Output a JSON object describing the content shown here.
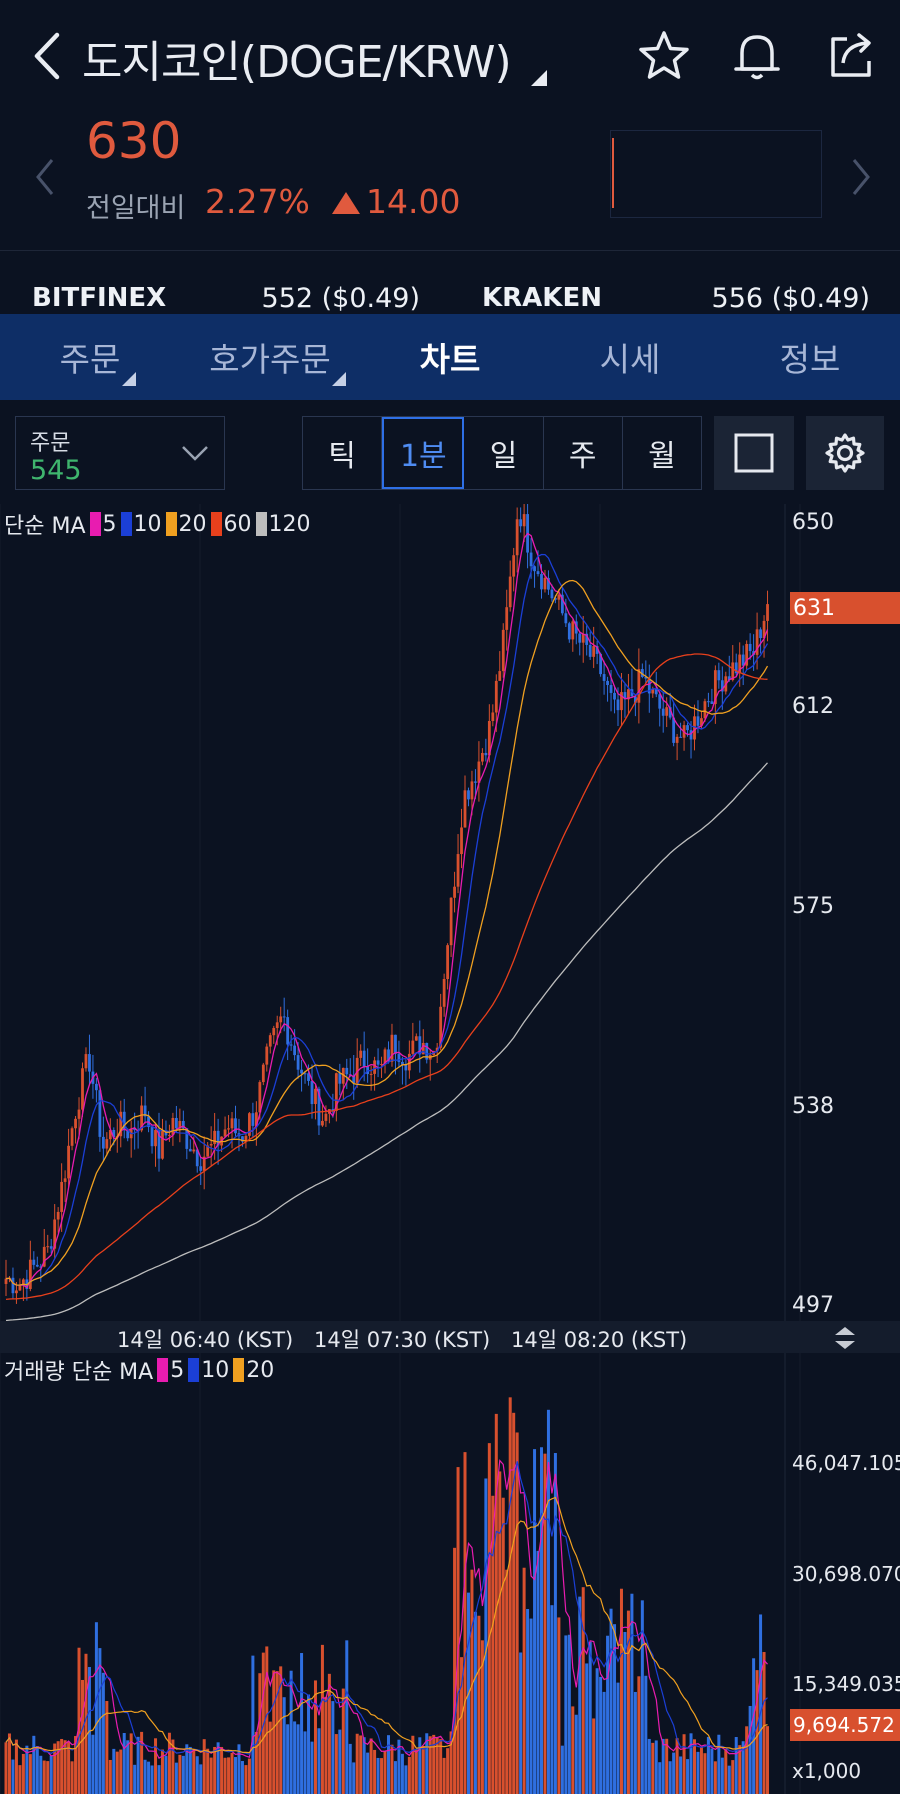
{
  "header": {
    "title": "도지코인(DOGE/KRW)",
    "price": "630",
    "change_label": "전일대비",
    "change_pct": "2.27%",
    "change_abs": "14.00",
    "colors": {
      "up": "#e05a3e",
      "background": "#0b1221"
    },
    "icons": [
      "back-icon",
      "star-icon",
      "bell-icon",
      "share-icon"
    ]
  },
  "exchanges": [
    {
      "name": "BITFINEX",
      "value": "552 ($0.49)"
    },
    {
      "name": "KRAKEN",
      "value": "556 ($0.49)"
    }
  ],
  "tabs": [
    {
      "label": "주문",
      "dropdown": true
    },
    {
      "label": "호가주문",
      "dropdown": true
    },
    {
      "label": "차트",
      "active": true
    },
    {
      "label": "시세"
    },
    {
      "label": "정보"
    }
  ],
  "toolbar": {
    "order_label": "주문",
    "order_value": "545",
    "periods": [
      "틱",
      "1분",
      "일",
      "주",
      "월"
    ],
    "active_period": "1분"
  },
  "price_chart": {
    "legend_title": "단순 MA",
    "ma": [
      {
        "label": "5",
        "color": "#e81cb0"
      },
      {
        "label": "10",
        "color": "#1b3fd6"
      },
      {
        "label": "20",
        "color": "#f0a020"
      },
      {
        "label": "60",
        "color": "#e8401c"
      },
      {
        "label": "120",
        "color": "#bdbdbd"
      }
    ],
    "y_ticks": [
      "650",
      "612",
      "575",
      "538",
      "497"
    ],
    "current_tag": "631",
    "time_labels": [
      "14일 06:40 (KST)",
      "14일 07:30 (KST)",
      "14일 08:20 (KST)"
    ]
  },
  "volume_chart": {
    "legend_title": "거래량 단순 MA",
    "ma": [
      {
        "label": "5",
        "color": "#e81cb0"
      },
      {
        "label": "10",
        "color": "#1b3fd6"
      },
      {
        "label": "20",
        "color": "#f0a020"
      }
    ],
    "y_ticks": [
      "46,047.105",
      "30,698.070",
      "15,349.035"
    ],
    "current_tag": "9,694.572",
    "unit": "x1,000"
  },
  "chart_data": [
    {
      "type": "candlestick",
      "title": "도지코인(DOGE/KRW) 1분",
      "ylim": [
        497,
        650
      ],
      "y_ticks": [
        650,
        612,
        575,
        538,
        497
      ],
      "x_ticks": [
        "14일 06:40 (KST)",
        "14일 07:30 (KST)",
        "14일 08:20 (KST)"
      ],
      "close_path": [
        503,
        502,
        505,
        508,
        520,
        535,
        545,
        528,
        532,
        531,
        535,
        527,
        533,
        530,
        526,
        528,
        532,
        530,
        535,
        546,
        553,
        545,
        538,
        533,
        540,
        542,
        545,
        542,
        548,
        545,
        548,
        546,
        570,
        594,
        600,
        608,
        625,
        650,
        640,
        635,
        630,
        625,
        622,
        618,
        610,
        613,
        617,
        612,
        608,
        605,
        610,
        615,
        618,
        620,
        622,
        631
      ],
      "series": [
        {
          "name": "MA5",
          "color": "#e81cb0"
        },
        {
          "name": "MA10",
          "color": "#1b3fd6"
        },
        {
          "name": "MA20",
          "color": "#f0a020"
        },
        {
          "name": "MA60",
          "color": "#e8401c"
        },
        {
          "name": "MA120",
          "color": "#bdbdbd"
        }
      ],
      "current": 631
    },
    {
      "type": "bar",
      "title": "거래량",
      "unit": "x1,000",
      "y_ticks": [
        46047.105,
        30698.07,
        15349.035
      ],
      "current": 9694.572,
      "series": [
        {
          "name": "MA5",
          "color": "#e81cb0"
        },
        {
          "name": "MA10",
          "color": "#1b3fd6"
        },
        {
          "name": "MA20",
          "color": "#f0a020"
        }
      ]
    }
  ]
}
